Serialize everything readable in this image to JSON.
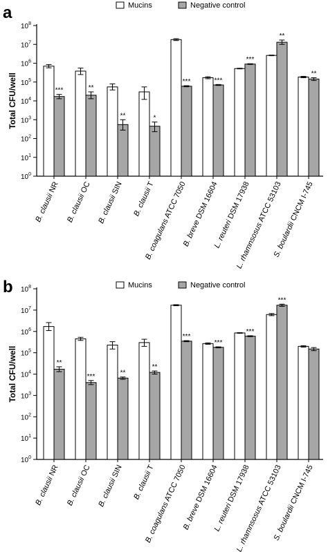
{
  "chart_data": [
    {
      "type": "bar",
      "panel_label": "a",
      "ylabel": "Total  CFU/well",
      "yscale": "log",
      "ylim": [
        1,
        100000000
      ],
      "yticks": [
        {
          "base": "10",
          "exp": "0"
        },
        {
          "base": "10",
          "exp": "1"
        },
        {
          "base": "10",
          "exp": "2"
        },
        {
          "base": "10",
          "exp": "3"
        },
        {
          "base": "10",
          "exp": "4"
        },
        {
          "base": "10",
          "exp": "5"
        },
        {
          "base": "10",
          "exp": "6"
        },
        {
          "base": "10",
          "exp": "7"
        },
        {
          "base": "10",
          "exp": "8"
        }
      ],
      "legend_position": "top",
      "categories": [
        {
          "italic": "B. clausii",
          "rest": " NR"
        },
        {
          "italic": "B. clausii",
          "rest": " OC"
        },
        {
          "italic": "B. clausii",
          "rest": " SIN"
        },
        {
          "italic": "B. clausii",
          "rest": " T"
        },
        {
          "italic": "B. coagulans",
          "rest": " ATCC 7050"
        },
        {
          "italic": "B. breve",
          "rest": " DSM 16604"
        },
        {
          "italic": "L. reuteri",
          "rest": " DSM 17938"
        },
        {
          "italic": "L. rhamnsosus",
          "rest": " ATCC 53103"
        },
        {
          "italic": "S. boulardii",
          "rest": " CNCM I-745"
        }
      ],
      "series": [
        {
          "name": "Mucins",
          "color": "#ffffff",
          "values": [
            700000,
            380000,
            55000,
            30000,
            18000000,
            170000,
            520000,
            2600000,
            185000
          ],
          "error_low": [
            570000,
            250000,
            38000,
            12000,
            16000000,
            150000,
            500000,
            2500000,
            170000
          ],
          "error_high": [
            850000,
            550000,
            80000,
            55000,
            20000000,
            190000,
            540000,
            2700000,
            200000
          ],
          "annotations": [
            "",
            "",
            "",
            "",
            "",
            "",
            "",
            "",
            ""
          ]
        },
        {
          "name": "Negative control",
          "color": "#a6a6a6",
          "values": [
            17000,
            20000,
            550,
            450,
            60000,
            70000,
            900000,
            13000000,
            145000
          ],
          "error_low": [
            13000,
            13000,
            280,
            230,
            56000,
            66000,
            860000,
            10000000,
            120000
          ],
          "error_high": [
            22000,
            30000,
            1000,
            750,
            64000,
            74000,
            940000,
            17000000,
            170000
          ],
          "annotations": [
            "***",
            "**",
            "**",
            "*",
            "***",
            "***",
            "***",
            "**",
            "**"
          ]
        }
      ]
    },
    {
      "type": "bar",
      "panel_label": "b",
      "ylabel": "Total  CFU/well",
      "yscale": "log",
      "ylim": [
        1,
        100000000
      ],
      "yticks": [
        {
          "base": "10",
          "exp": "0"
        },
        {
          "base": "10",
          "exp": "1"
        },
        {
          "base": "10",
          "exp": "2"
        },
        {
          "base": "10",
          "exp": "3"
        },
        {
          "base": "10",
          "exp": "4"
        },
        {
          "base": "10",
          "exp": "5"
        },
        {
          "base": "10",
          "exp": "6"
        },
        {
          "base": "10",
          "exp": "7"
        },
        {
          "base": "10",
          "exp": "8"
        }
      ],
      "legend_position": "top",
      "categories": [
        {
          "italic": "B. clausii",
          "rest": " NR"
        },
        {
          "italic": "B. clausii",
          "rest": " OC"
        },
        {
          "italic": "B. clausii",
          "rest": " SIN"
        },
        {
          "italic": "B. clausii",
          "rest": " T"
        },
        {
          "italic": "B. coagulans",
          "rest": " ATCC 7050"
        },
        {
          "italic": "B. breve",
          "rest": " DSM 16604"
        },
        {
          "italic": "L. reuteri",
          "rest": " DSM 17938"
        },
        {
          "italic": "L. rhamnsosus",
          "rest": " ATCC 53103"
        },
        {
          "italic": "S. boulardii",
          "rest": " CNCM I-745"
        }
      ],
      "series": [
        {
          "name": "Mucins",
          "color": "#ffffff",
          "values": [
            1700000,
            450000,
            230000,
            300000,
            17000000,
            270000,
            850000,
            6200000,
            200000
          ],
          "error_low": [
            1100000,
            380000,
            150000,
            200000,
            16000000,
            250000,
            820000,
            5500000,
            185000
          ],
          "error_high": [
            2600000,
            530000,
            330000,
            430000,
            18000000,
            290000,
            880000,
            6900000,
            215000
          ],
          "annotations": [
            "",
            "",
            "",
            "",
            "",
            "",
            "",
            "",
            ""
          ]
        },
        {
          "name": "Negative control",
          "color": "#a6a6a6",
          "values": [
            17000,
            4000,
            6500,
            12000,
            350000,
            180000,
            600000,
            17000000,
            150000
          ],
          "error_low": [
            13000,
            3200,
            5700,
            10000,
            330000,
            170000,
            570000,
            15000000,
            125000
          ],
          "error_high": [
            22000,
            5000,
            7300,
            14000,
            370000,
            190000,
            630000,
            19000000,
            175000
          ],
          "annotations": [
            "**",
            "***",
            "**",
            "**",
            "***",
            "***",
            "***",
            "***",
            ""
          ]
        }
      ]
    }
  ]
}
